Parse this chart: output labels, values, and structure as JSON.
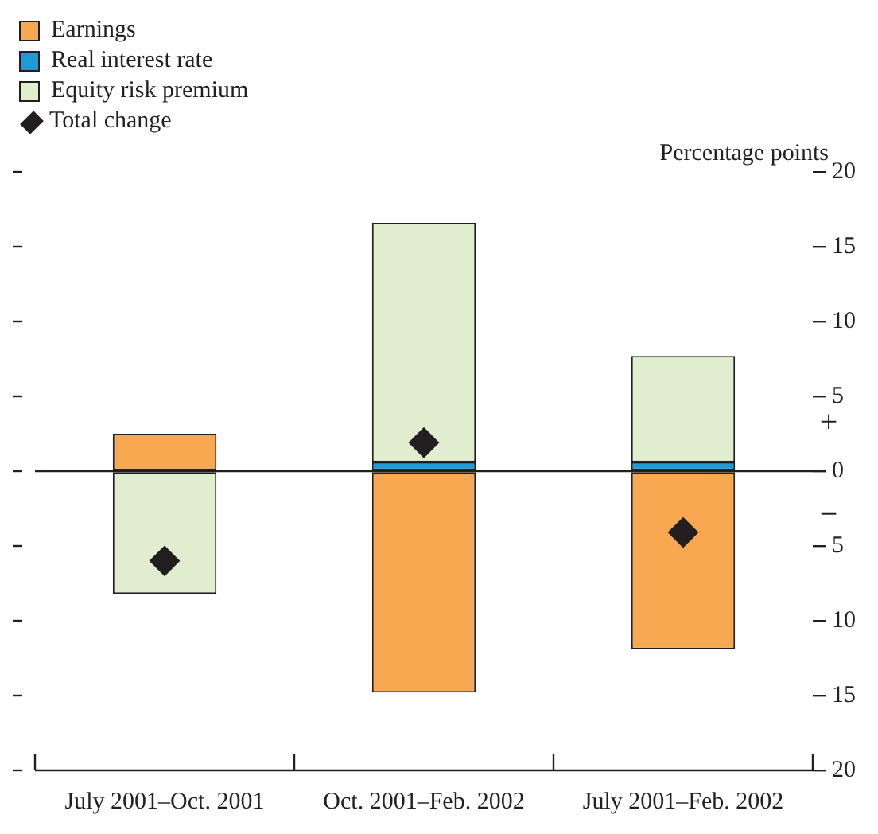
{
  "chart_data": {
    "type": "bar",
    "stacked": true,
    "ylabel": "Percentage points",
    "categories": [
      "July 2001–Oct. 2001",
      "Oct. 2001–Feb. 2002",
      "July 2001–Feb. 2002"
    ],
    "series": [
      {
        "name": "Earnings",
        "color": "#f9a852",
        "values": [
          2.5,
          -14.8,
          -11.9
        ]
      },
      {
        "name": "Real interest rate",
        "color": "#1e9ad6",
        "values": [
          null,
          0.6,
          0.6
        ]
      },
      {
        "name": "Equity risk premium",
        "color": "#e1edcf",
        "values": [
          -8.2,
          16.0,
          7.1
        ]
      },
      {
        "name": "Total change",
        "type": "scatter",
        "color": "#231f20",
        "x": [
          "July 2001–Oct. 2001",
          "Oct. 2001–Feb. 2002",
          "July 2001–Feb. 2002"
        ],
        "values": [
          -6.0,
          1.9,
          -4.1
        ]
      }
    ],
    "marker": "diamond",
    "legend": "top left",
    "ref_lines": [
      {
        "axis": "y",
        "value": 0,
        "color": "#231f20"
      }
    ],
    "ylim": [
      -20,
      20
    ],
    "yticks": [
      {
        "value": -20,
        "label": "20"
      },
      {
        "value": -15,
        "label": "15"
      },
      {
        "value": -10,
        "label": "10"
      },
      {
        "value": -5,
        "label": "5"
      },
      0,
      5,
      10,
      15,
      20
    ],
    "annotations": [
      "+",
      "−"
    ]
  }
}
